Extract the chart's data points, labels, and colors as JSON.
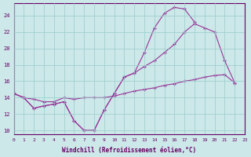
{
  "xlabel": "Windchill (Refroidissement éolien,°C)",
  "background_color": "#cce8e8",
  "line_color": "#993399",
  "grid_color": "#99cccc",
  "axis_color": "#660066",
  "spine_color": "#660066",
  "xlim": [
    0,
    23
  ],
  "ylim": [
    9.5,
    25.5
  ],
  "yticks": [
    10,
    12,
    14,
    16,
    18,
    20,
    22,
    24
  ],
  "xticks": [
    0,
    1,
    2,
    3,
    4,
    5,
    6,
    7,
    8,
    9,
    10,
    11,
    12,
    13,
    14,
    15,
    16,
    17,
    18,
    19,
    20,
    21,
    22,
    23
  ],
  "line1_x": [
    0,
    1,
    2,
    3,
    4,
    5,
    6,
    7,
    8,
    9,
    10,
    11,
    12,
    13,
    14,
    15,
    16,
    17,
    18,
    19,
    20,
    21
  ],
  "line1_y": [
    14.5,
    14.0,
    12.7,
    13.0,
    13.2,
    13.5,
    11.2,
    10.0,
    10.0,
    12.5,
    14.5,
    16.5,
    17.0,
    19.5,
    22.5,
    24.3,
    25.0,
    24.8,
    23.2,
    null,
    null,
    null
  ],
  "line2_x": [
    0,
    1,
    2,
    3,
    4,
    5,
    6,
    7,
    8,
    9,
    10,
    11,
    12,
    13,
    14,
    15,
    16,
    17,
    18,
    19,
    20,
    21,
    22
  ],
  "line2_y": [
    14.5,
    14.0,
    12.7,
    13.0,
    13.2,
    13.5,
    11.2,
    10.0,
    10.0,
    12.5,
    14.5,
    16.5,
    17.0,
    17.8,
    18.5,
    19.5,
    20.5,
    22.0,
    23.0,
    22.5,
    22.0,
    18.5,
    15.8
  ],
  "line3_x": [
    0,
    1,
    2,
    3,
    4,
    5,
    6,
    7,
    8,
    9,
    10,
    11,
    12,
    13,
    14,
    15,
    16,
    17,
    18,
    19,
    20,
    21,
    22
  ],
  "line3_y": [
    14.5,
    14.0,
    13.8,
    13.5,
    13.5,
    14.0,
    13.8,
    14.0,
    14.0,
    14.0,
    14.2,
    14.5,
    14.8,
    15.0,
    15.2,
    15.5,
    15.7,
    16.0,
    16.2,
    16.5,
    16.7,
    16.8,
    15.8
  ]
}
